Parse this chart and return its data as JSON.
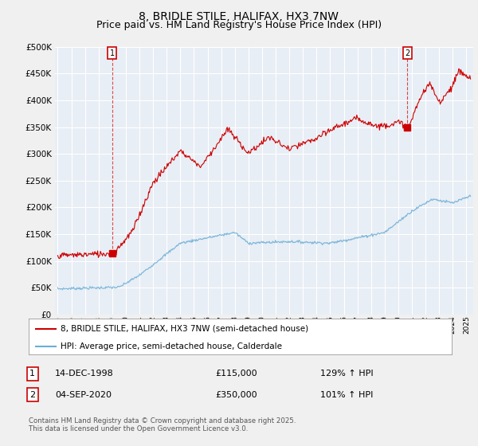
{
  "title": "8, BRIDLE STILE, HALIFAX, HX3 7NW",
  "subtitle": "Price paid vs. HM Land Registry's House Price Index (HPI)",
  "ylim": [
    0,
    500000
  ],
  "yticks": [
    0,
    50000,
    100000,
    150000,
    200000,
    250000,
    300000,
    350000,
    400000,
    450000,
    500000
  ],
  "xlim_start": 1994.8,
  "xlim_end": 2025.5,
  "background_color": "#e8eef5",
  "fig_background": "#f0f0f0",
  "red_color": "#cc0000",
  "blue_color": "#6baed6",
  "marker1_x": 1999.0,
  "marker1_y": 115000,
  "marker2_x": 2020.67,
  "marker2_y": 350000,
  "legend_label_red": "8, BRIDLE STILE, HALIFAX, HX3 7NW (semi-detached house)",
  "legend_label_blue": "HPI: Average price, semi-detached house, Calderdale",
  "table_row1": [
    "1",
    "14-DEC-1998",
    "£115,000",
    "129% ↑ HPI"
  ],
  "table_row2": [
    "2",
    "04-SEP-2020",
    "£350,000",
    "101% ↑ HPI"
  ],
  "footer": "Contains HM Land Registry data © Crown copyright and database right 2025.\nThis data is licensed under the Open Government Licence v3.0.",
  "title_fontsize": 10,
  "subtitle_fontsize": 9,
  "tick_fontsize": 7.5
}
